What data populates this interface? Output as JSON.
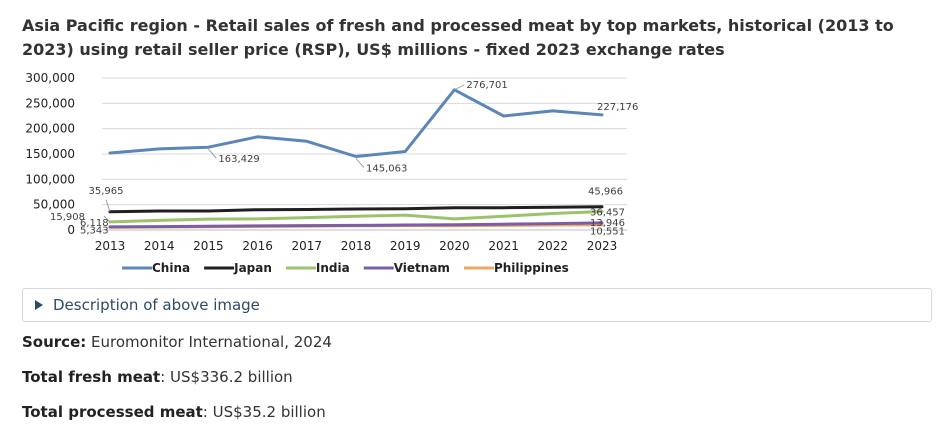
{
  "title": "Asia Pacific region - Retail sales of fresh and processed meat by top markets, historical (2013 to 2023) using retail seller price (RSP), US$ millions - fixed 2023 exchange rates",
  "description_toggle": "Description of above image",
  "source": {
    "label": "Source:",
    "value": " Euromonitor International, 2024"
  },
  "fresh_meat": {
    "label": "Total fresh meat",
    "value": ": US$336.2 billion"
  },
  "processed_meat": {
    "label": "Total processed meat",
    "value": ": US$35.2 billion"
  },
  "chart_data": {
    "type": "line",
    "title": "",
    "xlabel": "",
    "ylabel": "",
    "ylim": [
      0,
      300000
    ],
    "yticks": [
      0,
      50000,
      100000,
      150000,
      200000,
      250000,
      300000
    ],
    "ytick_labels": [
      "0",
      "50,000",
      "100,000",
      "150,000",
      "200,000",
      "250,000",
      "300,000"
    ],
    "grid": true,
    "legend_position": "bottom",
    "x": [
      "2013",
      "2014",
      "2015",
      "2016",
      "2017",
      "2018",
      "2019",
      "2020",
      "2021",
      "2022",
      "2023"
    ],
    "series": [
      {
        "name": "China",
        "color": "#5b86b9",
        "values": [
          152000,
          160000,
          163429,
          184000,
          175000,
          145063,
          155000,
          276701,
          225000,
          235000,
          227176
        ],
        "labels": [
          {
            "index": 2,
            "text": "163,429"
          },
          {
            "index": 5,
            "text": "145,063"
          },
          {
            "index": 7,
            "text": "276,701"
          },
          {
            "index": 10,
            "text": "227,176"
          }
        ]
      },
      {
        "name": "Japan",
        "color": "#1f1f1f",
        "values": [
          35965,
          37500,
          37500,
          40000,
          40500,
          41500,
          42000,
          44000,
          44000,
          45000,
          45966
        ],
        "labels": [
          {
            "index": 0,
            "text": "35,965"
          },
          {
            "index": 10,
            "text": "45,966"
          }
        ]
      },
      {
        "name": "India",
        "color": "#9bc36b",
        "values": [
          15908,
          19000,
          21500,
          22000,
          24500,
          27000,
          29500,
          22000,
          27000,
          32500,
          36457
        ],
        "labels": [
          {
            "index": 0,
            "text": "15,908"
          },
          {
            "index": 10,
            "text": "36,457"
          }
        ]
      },
      {
        "name": "Vietnam",
        "color": "#7b5ea7",
        "values": [
          6118,
          6800,
          7500,
          8000,
          8600,
          9100,
          9800,
          10500,
          11500,
          12700,
          13946
        ],
        "labels": [
          {
            "index": 0,
            "text": "6,118"
          },
          {
            "index": 10,
            "text": "13,946"
          }
        ]
      },
      {
        "name": "Philippines",
        "color": "#f0a55a",
        "values": [
          5343,
          6000,
          6600,
          7200,
          7700,
          8200,
          8600,
          8300,
          9000,
          9900,
          10551
        ],
        "labels": [
          {
            "index": 0,
            "text": "5,343"
          },
          {
            "index": 10,
            "text": "10,551"
          }
        ]
      }
    ]
  }
}
